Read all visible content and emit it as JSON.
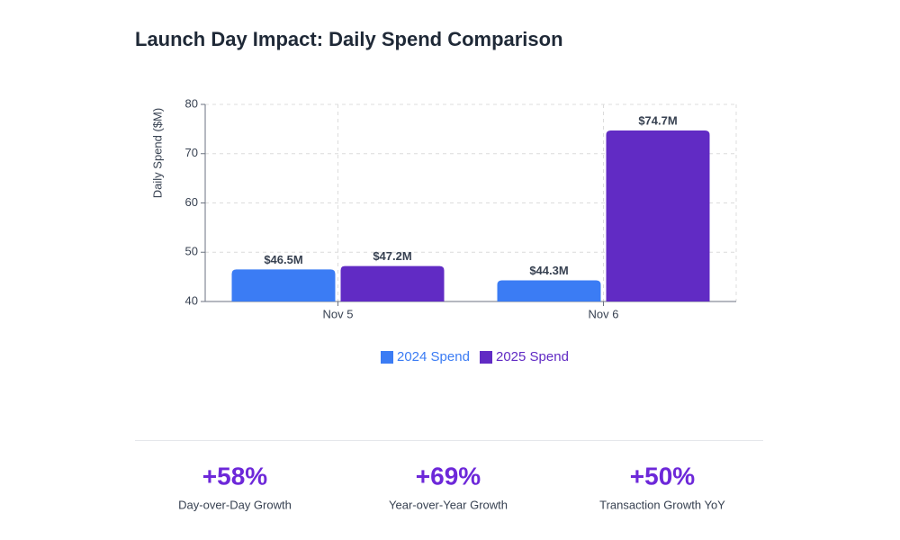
{
  "chart_data": {
    "type": "bar",
    "title": "Launch Day Impact: Daily Spend Comparison",
    "y_label": "Daily Spend ($M)",
    "categories": [
      "Nov 5",
      "Nov 6"
    ],
    "series": [
      {
        "name": "2024 Spend",
        "color": "#3b7cf4",
        "values": [
          46.5,
          44.3
        ],
        "value_labels": [
          "$46.5M",
          "$44.3M"
        ]
      },
      {
        "name": "2025 Spend",
        "color": "#612bc4",
        "values": [
          47.2,
          74.7
        ],
        "value_labels": [
          "$47.2M",
          "$74.7M"
        ]
      }
    ],
    "ylim": [
      40,
      80
    ],
    "yticks": [
      40,
      50,
      60,
      70,
      80
    ],
    "grid": true,
    "legend": "bottom"
  },
  "stats": [
    {
      "value": "+58%",
      "label": "Day-over-Day Growth"
    },
    {
      "value": "+69%",
      "label": "Year-over-Year Growth"
    },
    {
      "value": "+50%",
      "label": "Transaction Growth YoY"
    }
  ]
}
